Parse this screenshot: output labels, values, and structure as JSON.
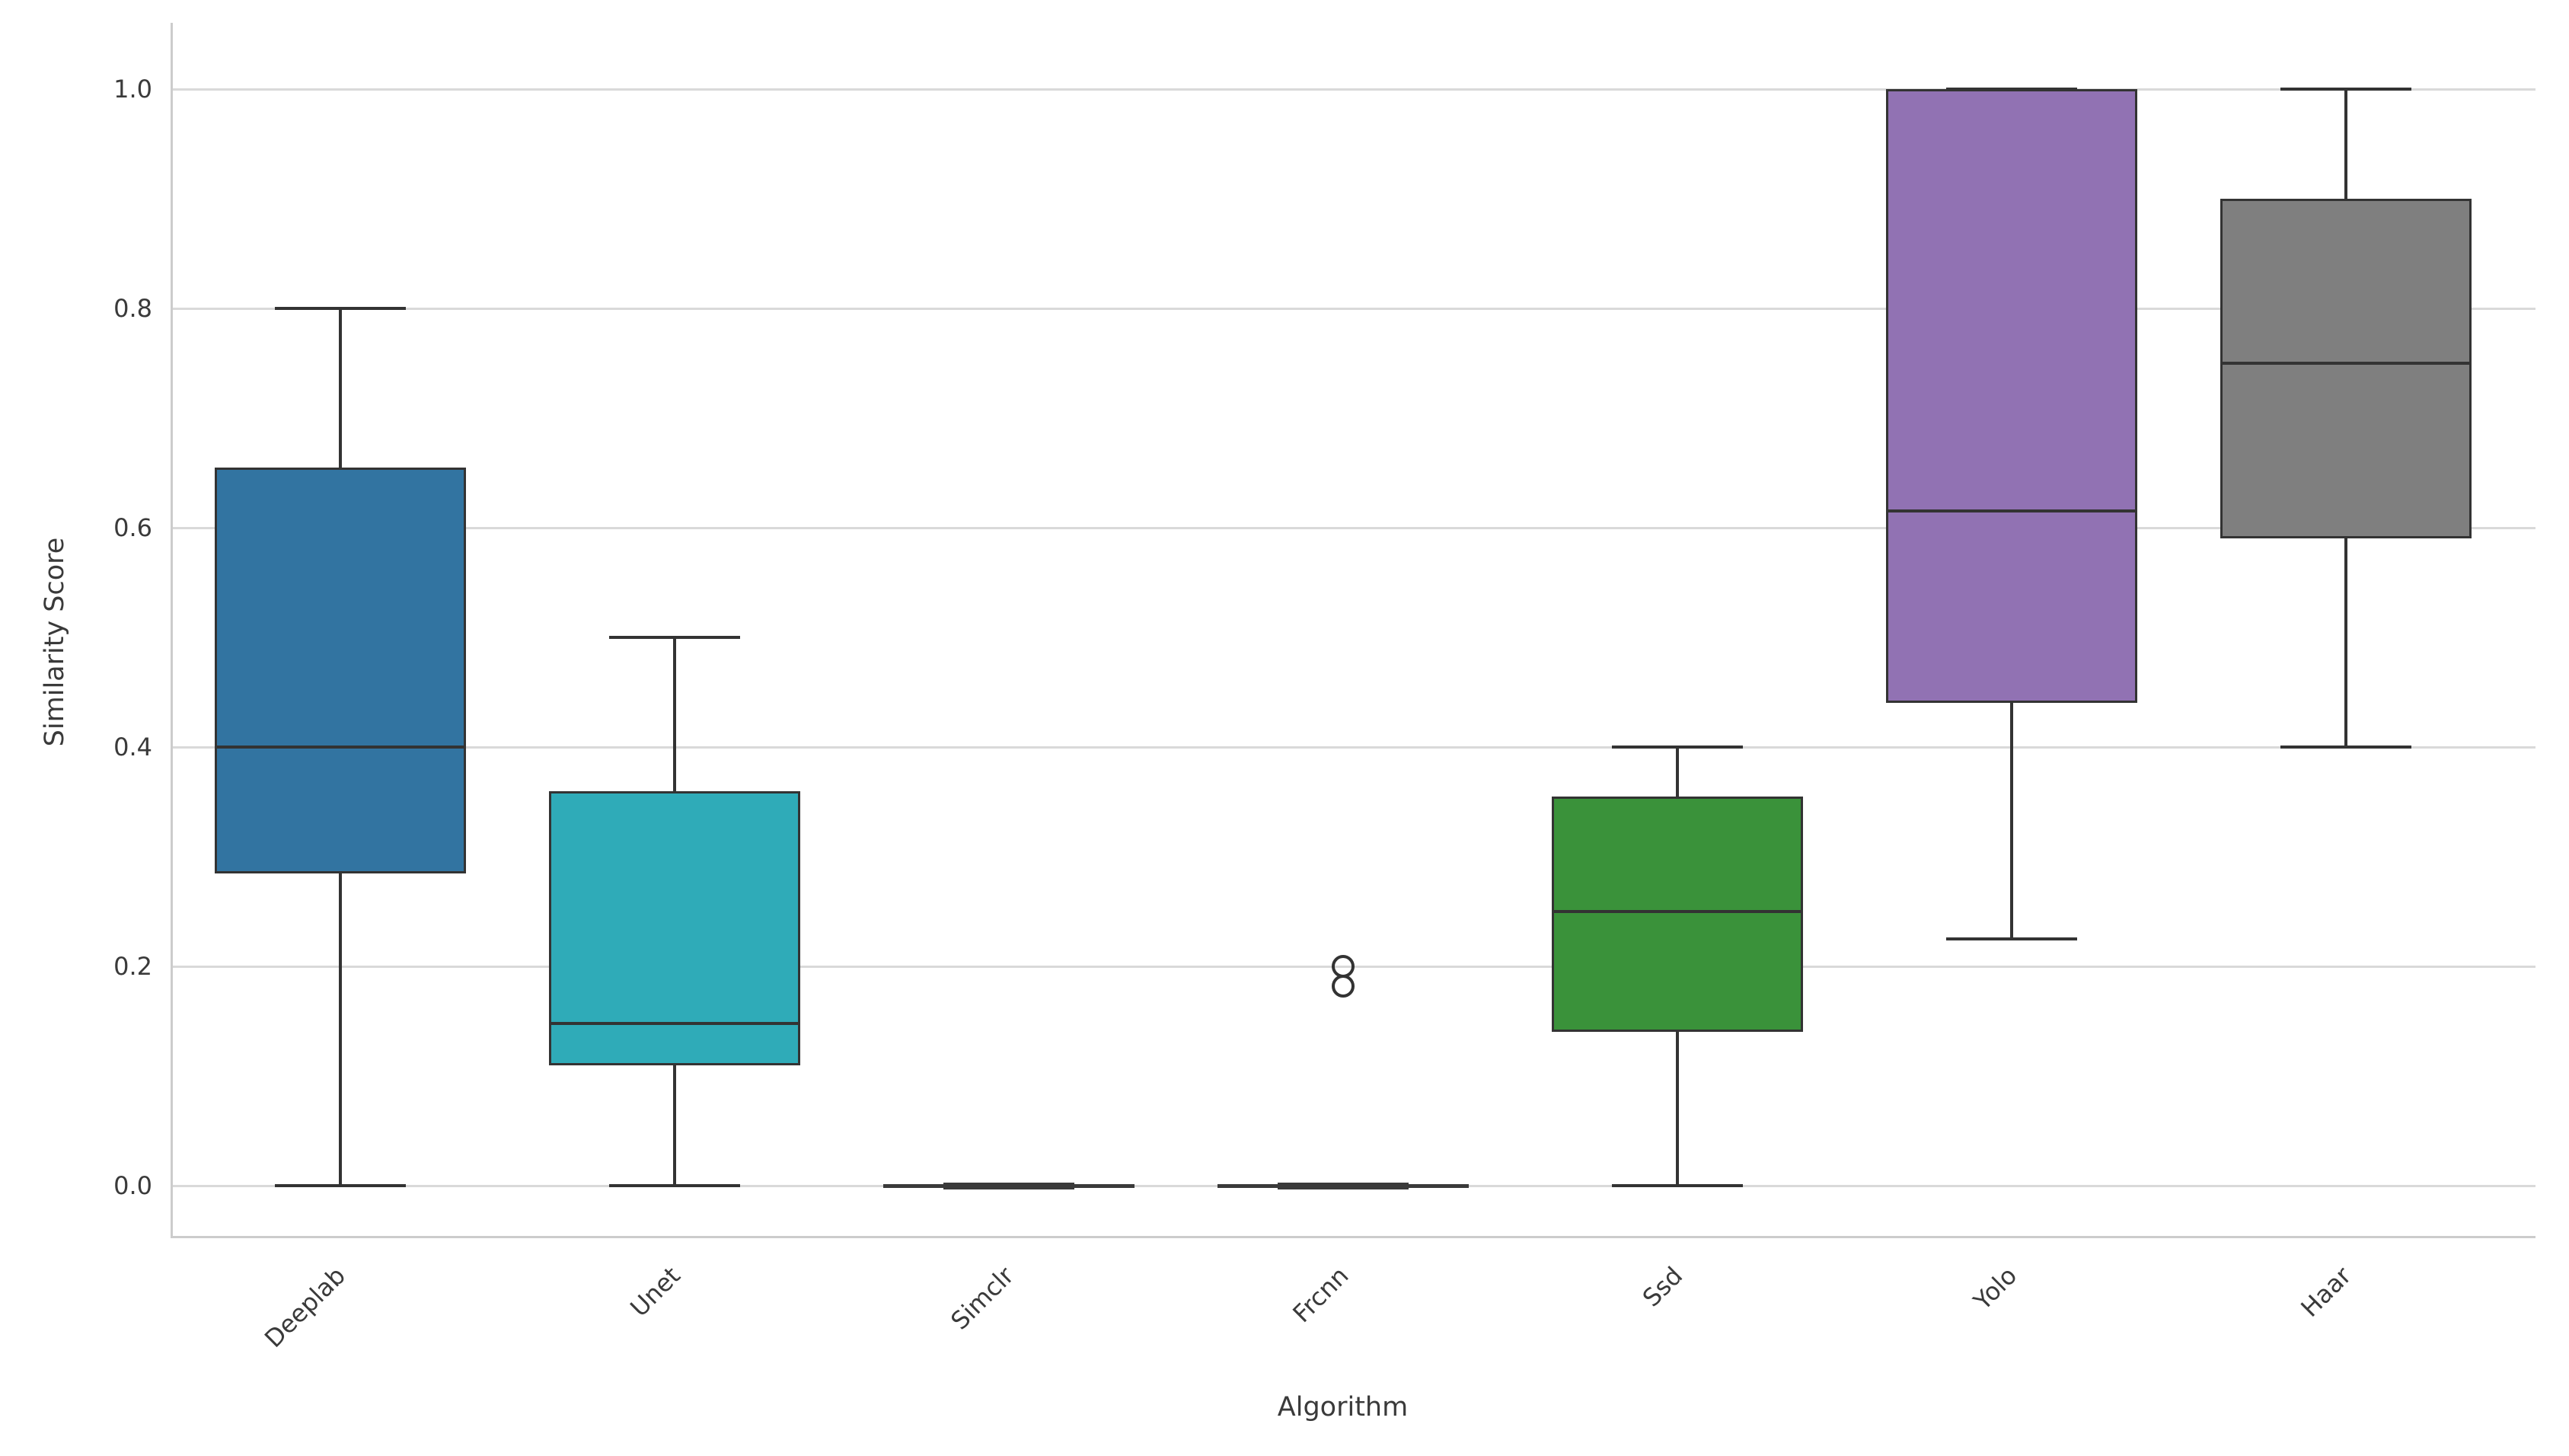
{
  "figure": {
    "background": "#ffffff",
    "grid_color": "#d9d9d9",
    "spine_color": "#cccccc",
    "edge_color": "#333333",
    "text_color": "#3a3a3a"
  },
  "chart_data": {
    "type": "box",
    "title": "",
    "xlabel": "Algorithm",
    "ylabel": "Similarity Score",
    "ytick_labels": [
      "0.0",
      "0.2",
      "0.4",
      "0.6",
      "0.8",
      "1.0"
    ],
    "yticks": [
      0.0,
      0.2,
      0.4,
      0.6,
      0.8,
      1.0
    ],
    "ylim": [
      -0.048,
      1.06
    ],
    "grid": "horizontal-only",
    "legend": "none",
    "xtick_rotation_deg": 45,
    "categories": [
      "Deeplab",
      "Unet",
      "Simclr",
      "Frcnn",
      "Ssd",
      "Yolo",
      "Haar"
    ],
    "series": [
      {
        "name": "Deeplab",
        "min": 0.0,
        "q1": 0.285,
        "median": 0.4,
        "q3": 0.655,
        "max": 0.8,
        "outliers": [],
        "color": "#3274a1"
      },
      {
        "name": "Unet",
        "min": 0.0,
        "q1": 0.11,
        "median": 0.148,
        "q3": 0.36,
        "max": 0.5,
        "outliers": [],
        "color": "#2fabb8"
      },
      {
        "name": "Simclr",
        "min": 0.0,
        "q1": 0.0,
        "median": 0.0,
        "q3": 0.0,
        "max": 0.0,
        "outliers": [],
        "color": null
      },
      {
        "name": "Frcnn",
        "min": 0.0,
        "q1": 0.0,
        "median": 0.0,
        "q3": 0.0,
        "max": 0.0,
        "outliers": [
          0.2,
          0.182
        ],
        "color": null
      },
      {
        "name": "Ssd",
        "min": 0.0,
        "q1": 0.14,
        "median": 0.25,
        "q3": 0.355,
        "max": 0.4,
        "outliers": [],
        "color": "#3a923a"
      },
      {
        "name": "Yolo",
        "min": 0.225,
        "q1": 0.44,
        "median": 0.615,
        "q3": 1.0,
        "max": 1.0,
        "outliers": [],
        "color": "#9172b3"
      },
      {
        "name": "Haar",
        "min": 0.4,
        "q1": 0.59,
        "median": 0.75,
        "q3": 0.9,
        "max": 1.0,
        "outliers": [],
        "color": "#7f7f7f"
      }
    ]
  }
}
